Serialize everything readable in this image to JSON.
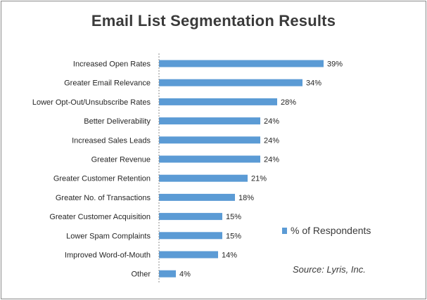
{
  "chart_data": {
    "type": "bar",
    "orientation": "horizontal",
    "title": "Email List Segmentation Results",
    "categories": [
      "Increased Open Rates",
      "Greater Email Relevance",
      "Lower Opt-Out/Unsubscribe Rates",
      "Better Deliverability",
      "Increased Sales Leads",
      "Greater Revenue",
      "Greater Customer Retention",
      "Greater No. of Transactions",
      "Greater Customer Acquisition",
      "Lower Spam Complaints",
      "Improved Word-of-Mouth",
      "Other"
    ],
    "series": [
      {
        "name": "% of Respondents",
        "values": [
          39,
          34,
          28,
          24,
          24,
          24,
          21,
          18,
          15,
          15,
          14,
          4
        ],
        "labels": [
          "39%",
          "34%",
          "28%",
          "24%",
          "24%",
          "24%",
          "21%",
          "18%",
          "15%",
          "15%",
          "14%",
          "4%"
        ],
        "color": "#5b9bd5"
      }
    ],
    "xlim": [
      0,
      45
    ],
    "legend": "right",
    "grid": false,
    "source": "Source: Lyris, Inc."
  }
}
